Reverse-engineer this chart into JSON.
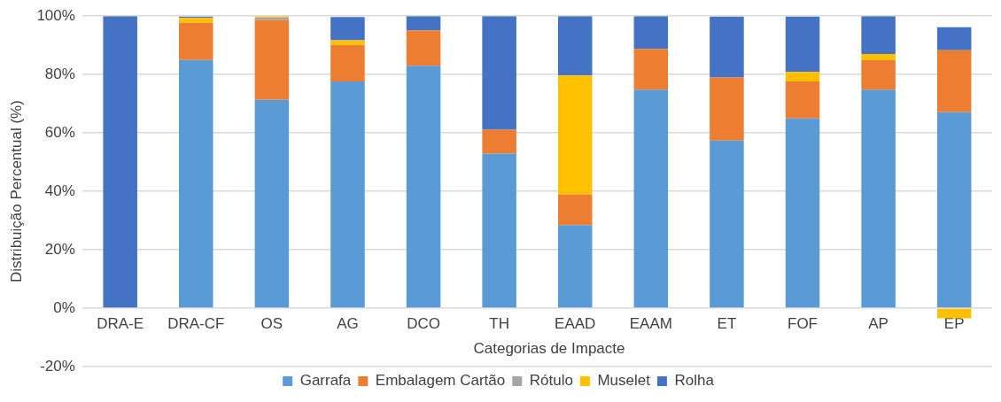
{
  "chart_data": {
    "type": "bar",
    "stacked": true,
    "xlabel": "Categorias de Impacte",
    "ylabel": "Distribuição Percentual (%)",
    "categories": [
      "DRA-E",
      "DRA-CF",
      "OS",
      "AG",
      "DCO",
      "TH",
      "EAAD",
      "EAAM",
      "ET",
      "FOF",
      "AP",
      "EP"
    ],
    "series": [
      {
        "name": "Garrafa",
        "color": "#5b9bd5",
        "values": [
          0,
          85.0,
          71.3,
          77.6,
          83.0,
          52.9,
          28.4,
          74.8,
          57.4,
          65.0,
          74.8,
          67.1
        ]
      },
      {
        "name": "Embalagem Cartão",
        "color": "#ed7d31",
        "values": [
          0,
          12.7,
          27.3,
          12.5,
          12.1,
          8.2,
          10.5,
          14.0,
          21.6,
          12.6,
          10.1,
          21.2
        ]
      },
      {
        "name": "Rótulo",
        "color": "#a5a5a5",
        "values": [
          0,
          null,
          0.9,
          null,
          0,
          0,
          0,
          0,
          null,
          null,
          0,
          null
        ]
      },
      {
        "name": "Muselet",
        "color": "#ffc000",
        "values": [
          0,
          1.7,
          0.5,
          1.6,
          0,
          0,
          40.8,
          0,
          0,
          3.3,
          2.1,
          -3.5
        ]
      },
      {
        "name": "Rolha",
        "color": "#4472c4",
        "values": [
          100,
          0.4,
          0,
          8.0,
          4.9,
          38.9,
          20.3,
          11.2,
          20.8,
          18.9,
          13.0,
          7.9
        ]
      }
    ],
    "ylim": [
      -20,
      100
    ],
    "yticks": [
      {
        "value": -20,
        "label": "-20%"
      },
      {
        "value": 0,
        "label": "0%"
      },
      {
        "value": 20,
        "label": "20%"
      },
      {
        "value": 40,
        "label": "40%"
      },
      {
        "value": 60,
        "label": "60%"
      },
      {
        "value": 80,
        "label": "80%"
      },
      {
        "value": 100,
        "label": "100%"
      }
    ],
    "grid": "y",
    "legend": "bottom"
  }
}
